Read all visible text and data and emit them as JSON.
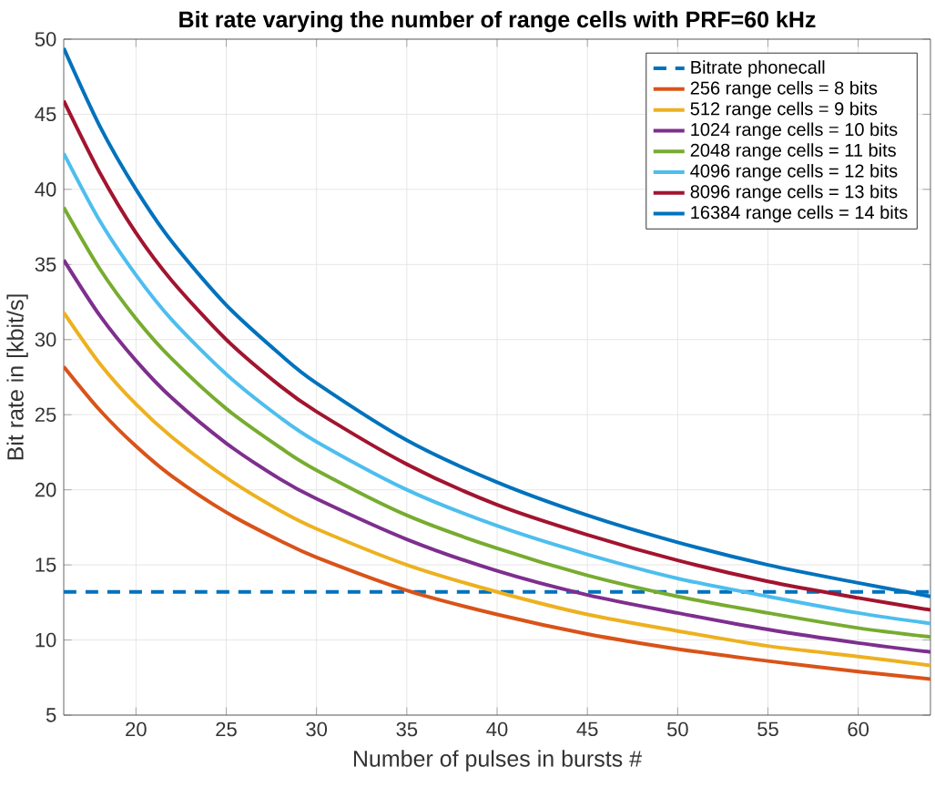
{
  "chart_data": {
    "type": "line",
    "title": "Bit rate varying the number of range cells with PRF=60 kHz",
    "xlabel": "Number of pulses in bursts #",
    "ylabel": "Bit rate in [kbit/s]",
    "x": [
      16,
      18,
      20,
      22,
      25,
      28,
      30,
      35,
      40,
      45,
      50,
      55,
      60,
      64
    ],
    "xlim": [
      16,
      64
    ],
    "ylim": [
      5,
      50
    ],
    "xticks": [
      20,
      25,
      30,
      35,
      40,
      45,
      50,
      55,
      60
    ],
    "yticks": [
      5,
      10,
      15,
      20,
      25,
      30,
      35,
      40,
      45,
      50
    ],
    "grid": true,
    "legend": "top right",
    "series": [
      {
        "name": "Bitrate phonecall",
        "color": "#0072bd",
        "line_style": "dashed",
        "x": [
          16,
          64
        ],
        "values": [
          13.2,
          13.2
        ]
      },
      {
        "name": "256 range cells = 8 bits",
        "color": "#d95319",
        "values": [
          28.2,
          25.3,
          22.9,
          20.9,
          18.5,
          16.6,
          15.5,
          13.3,
          11.7,
          10.4,
          9.4,
          8.6,
          7.9,
          7.4
        ]
      },
      {
        "name": "512 range cells = 9 bits",
        "color": "#edb120",
        "values": [
          31.8,
          28.4,
          25.7,
          23.5,
          20.8,
          18.6,
          17.4,
          15.0,
          13.2,
          11.7,
          10.6,
          9.6,
          8.9,
          8.3
        ]
      },
      {
        "name": "1024 range cells = 10 bits",
        "color": "#7e2f8e",
        "values": [
          35.3,
          31.6,
          28.6,
          26.1,
          23.1,
          20.7,
          19.4,
          16.7,
          14.6,
          13.0,
          11.8,
          10.7,
          9.8,
          9.2
        ]
      },
      {
        "name": "2048 range cells = 11 bits",
        "color": "#77ac30",
        "values": [
          38.8,
          34.7,
          31.4,
          28.7,
          25.4,
          22.8,
          21.3,
          18.3,
          16.1,
          14.3,
          12.9,
          11.8,
          10.8,
          10.2
        ]
      },
      {
        "name": "4096 range cells = 12 bits",
        "color": "#4dbeee",
        "values": [
          42.4,
          37.9,
          34.3,
          31.3,
          27.7,
          24.8,
          23.2,
          20.0,
          17.6,
          15.7,
          14.1,
          12.9,
          11.8,
          11.1
        ]
      },
      {
        "name": "8096 range cells = 13 bits",
        "color": "#a2142f",
        "values": [
          45.9,
          41.1,
          37.1,
          33.9,
          30.0,
          26.9,
          25.2,
          21.7,
          19.0,
          17.0,
          15.3,
          13.9,
          12.8,
          12.0
        ]
      },
      {
        "name": "16384 range cells = 14 bits",
        "color": "#0072bd",
        "values": [
          49.4,
          44.2,
          40.0,
          36.5,
          32.3,
          29.0,
          27.1,
          23.3,
          20.5,
          18.3,
          16.5,
          15.0,
          13.8,
          12.9
        ]
      }
    ]
  }
}
